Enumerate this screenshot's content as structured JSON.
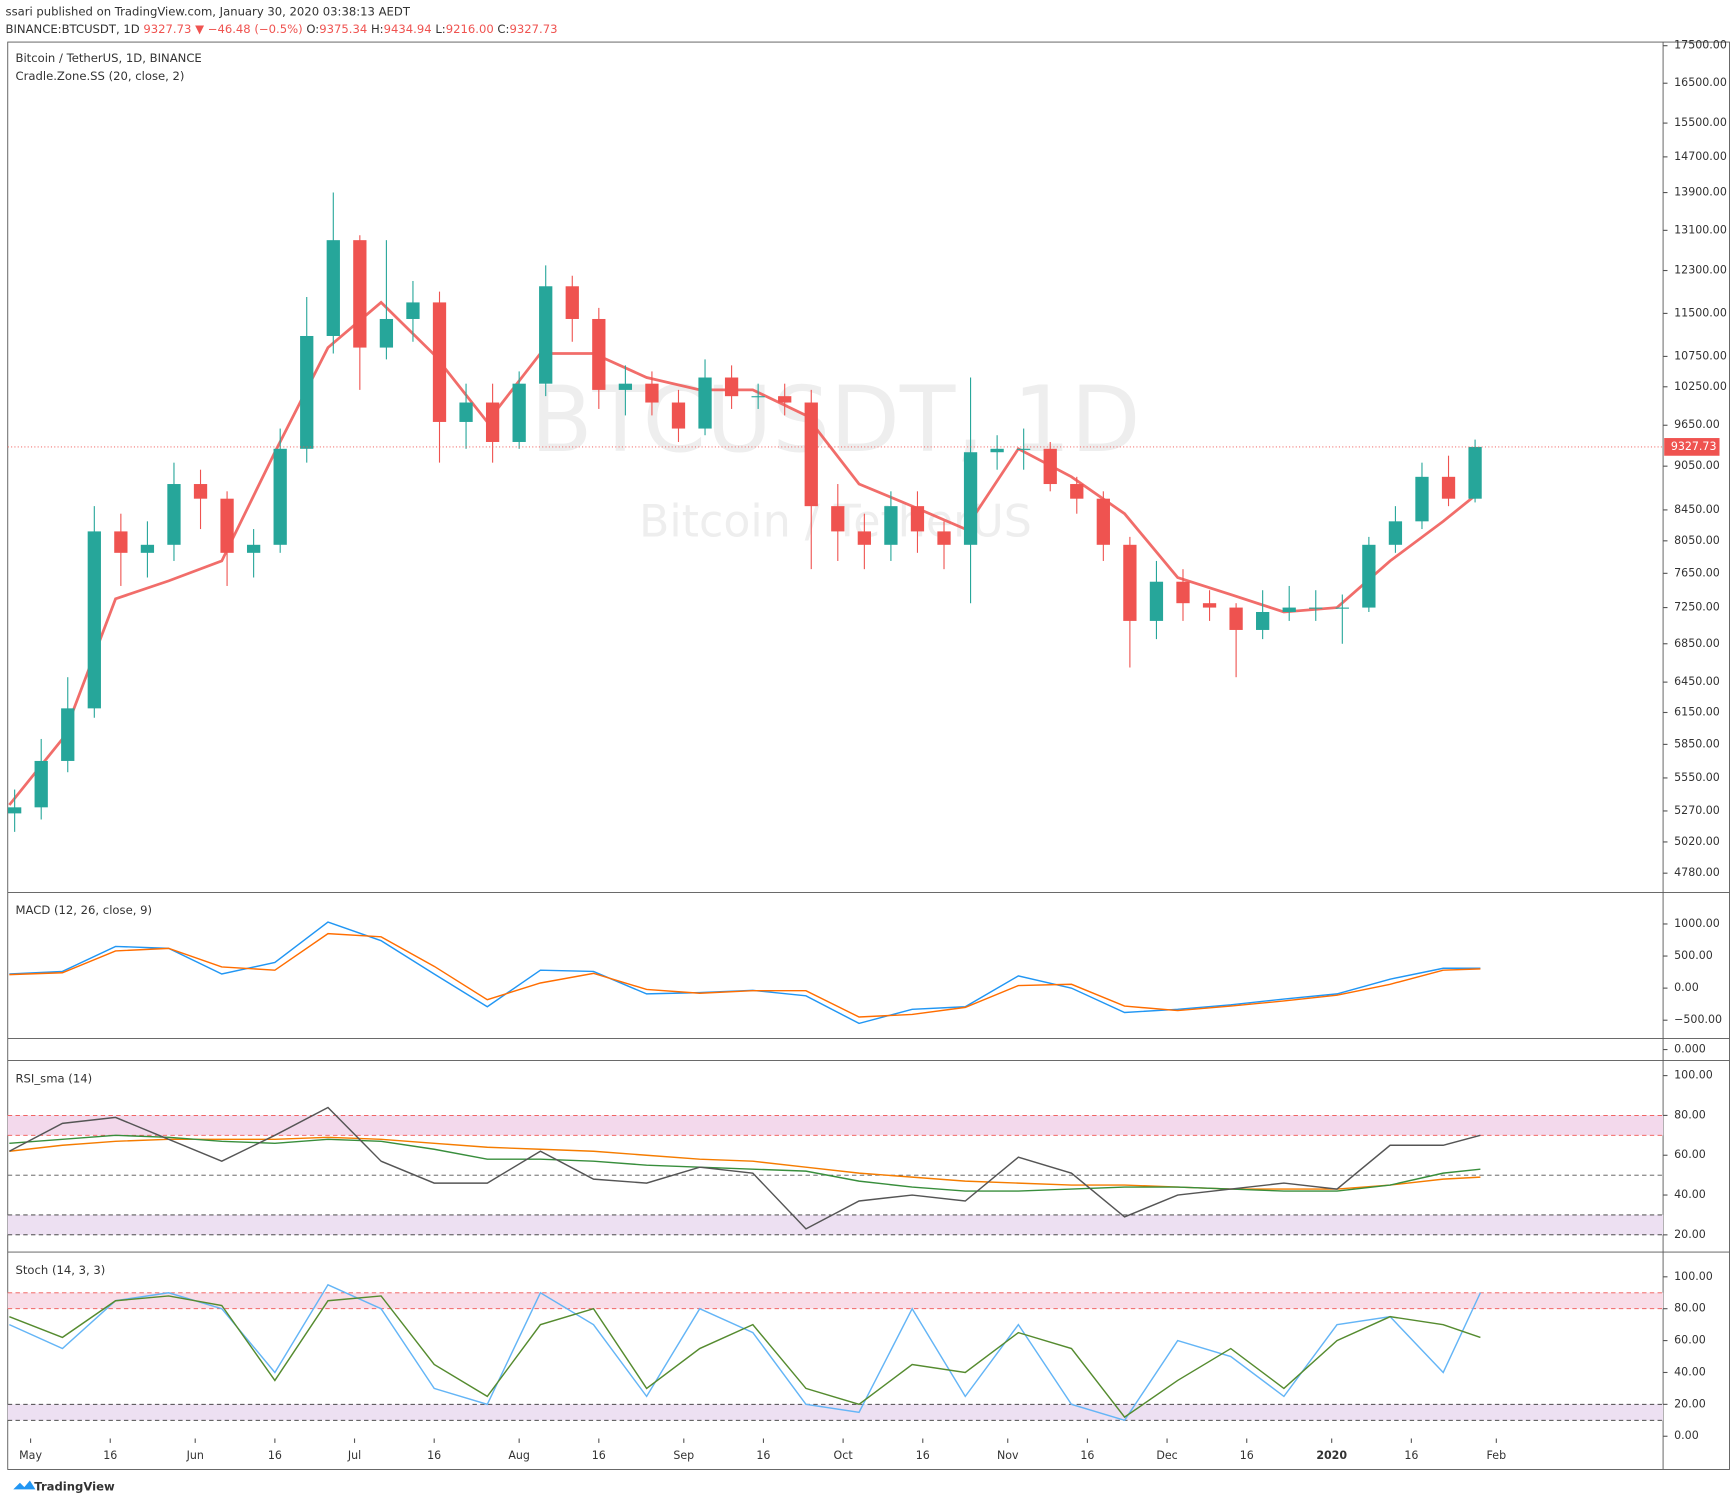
{
  "header": {
    "author_line": "ssari published on TradingView.com, January 30, 2020 03:38:13 AEDT",
    "symbol": "BINANCE:BTCUSDT, 1D",
    "last": "9327.73",
    "change": "▼ −46.48 (−0.5%)",
    "ohlc": [
      {
        "label": "O:",
        "value": "9375.34"
      },
      {
        "label": "H:",
        "value": "9434.94"
      },
      {
        "label": "L:",
        "value": "9216.00"
      },
      {
        "label": "C:",
        "value": "9327.73"
      }
    ]
  },
  "footer": {
    "brand": "TradingView"
  },
  "chart_data": [
    {
      "type": "candlestick",
      "title": "Bitcoin / TetherUS, 1D, BINANCE",
      "subtitle": "Cradle.Zone.SS (20, close, 2)",
      "watermark": "BTCUSDT, 1D",
      "watermark_sub": "Bitcoin / TetherUS",
      "log_scale": true,
      "up_color": "#26a69a",
      "down_color": "#ef5350",
      "xlim": [
        -4.3,
        307.4
      ],
      "xticks": [
        {
          "value": 0,
          "label": "May"
        },
        {
          "value": 15,
          "label": "16"
        },
        {
          "value": 31,
          "label": "Jun"
        },
        {
          "value": 46,
          "label": "16"
        },
        {
          "value": 61,
          "label": "Jul"
        },
        {
          "value": 76,
          "label": "16"
        },
        {
          "value": 92,
          "label": "Aug"
        },
        {
          "value": 107,
          "label": "16"
        },
        {
          "value": 123,
          "label": "Sep"
        },
        {
          "value": 138,
          "label": "16"
        },
        {
          "value": 153,
          "label": "Oct"
        },
        {
          "value": 168,
          "label": "16"
        },
        {
          "value": 184,
          "label": "Nov"
        },
        {
          "value": 199,
          "label": "16"
        },
        {
          "value": 214,
          "label": "Dec"
        },
        {
          "value": 229,
          "label": "16"
        },
        {
          "value": 245,
          "label": "2020"
        },
        {
          "value": 260,
          "label": "16"
        },
        {
          "value": 276,
          "label": "Feb"
        }
      ],
      "ylim": [
        4650,
        17600
      ],
      "yticks": [
        {
          "value": 17500,
          "label": "17500.00"
        },
        {
          "value": 16500,
          "label": "16500.00"
        },
        {
          "value": 15500,
          "label": "15500.00"
        },
        {
          "value": 14700,
          "label": "14700.00"
        },
        {
          "value": 13900,
          "label": "13900.00"
        },
        {
          "value": 13100,
          "label": "13100.00"
        },
        {
          "value": 12300,
          "label": "12300.00"
        },
        {
          "value": 11500,
          "label": "11500.00"
        },
        {
          "value": 10750,
          "label": "10750.00"
        },
        {
          "value": 10250,
          "label": "10250.00"
        },
        {
          "value": 9650,
          "label": "9650.00"
        },
        {
          "value": 9050,
          "label": "9050.00"
        },
        {
          "value": 8450,
          "label": "8450.00"
        },
        {
          "value": 8050,
          "label": "8050.00"
        },
        {
          "value": 7650,
          "label": "7650.00"
        },
        {
          "value": 7250,
          "label": "7250.00"
        },
        {
          "value": 6850,
          "label": "6850.00"
        },
        {
          "value": 6450,
          "label": "6450.00"
        },
        {
          "value": 6150,
          "label": "6150.00"
        },
        {
          "value": 5850,
          "label": "5850.00"
        },
        {
          "value": 5550,
          "label": "5550.00"
        },
        {
          "value": 5270,
          "label": "5270.00"
        },
        {
          "value": 5020,
          "label": "5020.00"
        },
        {
          "value": 4780,
          "label": "4780.00"
        }
      ],
      "x": [
        -3,
        2,
        7,
        12,
        17,
        22,
        27,
        32,
        37,
        42,
        47,
        52,
        57,
        62,
        67,
        72,
        77,
        82,
        87,
        92,
        97,
        102,
        107,
        112,
        117,
        122,
        127,
        132,
        137,
        142,
        147,
        152,
        157,
        162,
        167,
        172,
        177,
        182,
        187,
        192,
        197,
        202,
        207,
        212,
        217,
        222,
        227,
        232,
        237,
        242,
        247,
        252,
        257,
        262,
        267,
        272
      ],
      "open": [
        5250,
        5300,
        5700,
        6190,
        8170,
        7900,
        8000,
        8800,
        8600,
        7900,
        8000,
        9300,
        11100,
        12900,
        10900,
        11400,
        11700,
        9700,
        10000,
        9400,
        10300,
        12000,
        11400,
        10200,
        10300,
        10000,
        9600,
        10400,
        10100,
        10100,
        10000,
        8500,
        8170,
        8000,
        8500,
        8170,
        8000,
        9250,
        9300,
        9300,
        8800,
        8600,
        8000,
        7100,
        7550,
        7300,
        7250,
        7000,
        7200,
        7250,
        7250,
        7250,
        8000,
        8300,
        8900,
        8600
      ],
      "high": [
        5450,
        5900,
        6500,
        8500,
        8400,
        8300,
        9100,
        9000,
        8700,
        8200,
        9600,
        11800,
        13900,
        13000,
        12900,
        12100,
        11900,
        10300,
        10300,
        10500,
        12400,
        12200,
        11600,
        10600,
        10500,
        10200,
        10700,
        10600,
        10300,
        10300,
        10200,
        8800,
        8400,
        8700,
        8700,
        8300,
        10400,
        9500,
        9600,
        9400,
        8900,
        8700,
        8100,
        7800,
        7700,
        7450,
        7300,
        7450,
        7500,
        7450,
        7400,
        8100,
        8500,
        9100,
        9200,
        9435
      ],
      "low": [
        5100,
        5200,
        5600,
        6100,
        7500,
        7600,
        7800,
        8200,
        7500,
        7600,
        7900,
        9100,
        10800,
        10200,
        10700,
        11000,
        9100,
        9300,
        9100,
        9300,
        10100,
        11000,
        9900,
        9800,
        9800,
        9400,
        9500,
        9900,
        9900,
        9800,
        7700,
        7800,
        7700,
        7800,
        7900,
        7700,
        7300,
        9000,
        9000,
        8700,
        8400,
        7800,
        6600,
        6900,
        7100,
        7100,
        6500,
        6900,
        7100,
        7100,
        6850,
        7200,
        7900,
        8200,
        8500,
        8550
      ],
      "close": [
        5300,
        5700,
        6190,
        8170,
        7900,
        8000,
        8800,
        8600,
        7900,
        8000,
        9300,
        11100,
        12900,
        10900,
        11400,
        11700,
        9700,
        10000,
        9400,
        10300,
        12000,
        11400,
        10200,
        10300,
        10000,
        9600,
        10400,
        10100,
        10100,
        10000,
        8500,
        8170,
        8000,
        8500,
        8170,
        8000,
        9250,
        9300,
        9300,
        8800,
        8600,
        8000,
        7100,
        7550,
        7300,
        7250,
        7000,
        7200,
        7250,
        7250,
        7250,
        8000,
        8300,
        8900,
        8600,
        9327.73
      ],
      "zone": {
        "color": "#ef5350",
        "x": [
          -4,
          6,
          16,
          26,
          36,
          46,
          56,
          66,
          76,
          86,
          96,
          106,
          116,
          126,
          136,
          146,
          156,
          166,
          176,
          186,
          196,
          206,
          216,
          226,
          236,
          246,
          256,
          266,
          273
        ],
        "values": [
          5320,
          5900,
          7350,
          7560,
          7800,
          9250,
          10900,
          11700,
          10780,
          9700,
          10800,
          10800,
          10400,
          10200,
          10200,
          9800,
          8800,
          8500,
          8200,
          9300,
          8900,
          8400,
          7600,
          7400,
          7200,
          7250,
          7800,
          8300,
          8700
        ]
      }
    },
    {
      "type": "line",
      "title": "MACD (12, 26, close, 9)",
      "xlim": [
        -4.3,
        307.4
      ],
      "ylim": [
        -759,
        1466
      ],
      "yticks": [
        {
          "value": 1000,
          "label": "1000.00"
        },
        {
          "value": 500,
          "label": "500.00"
        },
        {
          "value": 0,
          "label": "0.00"
        },
        {
          "value": -500,
          "label": "−500.00"
        }
      ],
      "x": [
        -4,
        6,
        16,
        26,
        36,
        46,
        56,
        66,
        76,
        86,
        96,
        106,
        116,
        126,
        136,
        146,
        156,
        166,
        176,
        186,
        196,
        206,
        216,
        226,
        236,
        246,
        256,
        266,
        273
      ],
      "series": [
        {
          "color": "#2196f3",
          "values": [
            220,
            260,
            650,
            620,
            220,
            400,
            1030,
            740,
            220,
            -290,
            280,
            260,
            -90,
            -70,
            -35,
            -120,
            -550,
            -330,
            -290,
            190,
            0,
            -380,
            -330,
            -260,
            -170,
            -90,
            140,
            310,
            310
          ]
        },
        {
          "color": "#ff6d00",
          "values": [
            210,
            240,
            580,
            620,
            330,
            280,
            850,
            800,
            340,
            -180,
            80,
            230,
            -20,
            -80,
            -40,
            -40,
            -450,
            -410,
            -300,
            40,
            60,
            -280,
            -350,
            -280,
            -200,
            -110,
            60,
            280,
            300
          ]
        }
      ]
    },
    {
      "type": "line",
      "xlim": [
        -4.3,
        307.4
      ],
      "ylim": [
        -1,
        1
      ],
      "yticks": [
        {
          "value": 0,
          "label": "0.000"
        }
      ],
      "x": [],
      "series": []
    },
    {
      "type": "line",
      "title": "RSI_sma (14)",
      "xlim": [
        -4.3,
        307.4
      ],
      "ylim": [
        12.2,
        106.7
      ],
      "yticks": [
        {
          "value": 100,
          "label": "100.00"
        },
        {
          "value": 80,
          "label": "80.00"
        },
        {
          "value": 60,
          "label": "60.00"
        },
        {
          "value": 40,
          "label": "40.00"
        },
        {
          "value": 20,
          "label": "20.00"
        }
      ],
      "bands": [
        {
          "range": [
            70,
            80
          ],
          "color": "#f3d9ec"
        },
        {
          "range": [
            20,
            30
          ],
          "color": "#ede0f2"
        }
      ],
      "levels": [
        {
          "value": 80,
          "color": "#ef5350"
        },
        {
          "value": 70,
          "color": "#ef5350"
        },
        {
          "value": 50,
          "color": "#555"
        },
        {
          "value": 30,
          "color": "#333"
        },
        {
          "value": 20,
          "color": "#333"
        }
      ],
      "x": [
        -4,
        6,
        16,
        26,
        36,
        46,
        56,
        66,
        76,
        86,
        96,
        106,
        116,
        126,
        136,
        146,
        156,
        166,
        176,
        186,
        196,
        206,
        216,
        226,
        236,
        246,
        256,
        266,
        273
      ],
      "series": [
        {
          "color": "#f57c00",
          "values": [
            62,
            65,
            67,
            68,
            68,
            68,
            69,
            68,
            66,
            64,
            63,
            62,
            60,
            58,
            57,
            54,
            51,
            49,
            47,
            46,
            45,
            45,
            44,
            43,
            43,
            43,
            45,
            48,
            49
          ]
        },
        {
          "color": "#388e3c",
          "values": [
            66,
            68,
            70,
            69,
            67,
            66,
            68,
            67,
            63,
            58,
            58,
            57,
            55,
            54,
            53,
            52,
            47,
            44,
            42,
            42,
            43,
            44,
            44,
            43,
            42,
            42,
            45,
            51,
            53
          ]
        },
        {
          "color": "#555555",
          "values": [
            62,
            76,
            79,
            68,
            57,
            70,
            84,
            57,
            46,
            46,
            62,
            48,
            46,
            54,
            51,
            23,
            37,
            40,
            37,
            59,
            51,
            29,
            40,
            43,
            46,
            43,
            65,
            65,
            70
          ]
        }
      ]
    },
    {
      "type": "line",
      "title": "Stoch (14, 3, 3)",
      "xlim": [
        -4.3,
        307.4
      ],
      "ylim": [
        -1.4,
        114.5
      ],
      "yticks": [
        {
          "value": 100,
          "label": "100.00"
        },
        {
          "value": 80,
          "label": "80.00"
        },
        {
          "value": 60,
          "label": "60.00"
        },
        {
          "value": 40,
          "label": "40.00"
        },
        {
          "value": 20,
          "label": "20.00"
        },
        {
          "value": 0,
          "label": "0.00"
        }
      ],
      "bands": [
        {
          "range": [
            80,
            90
          ],
          "color": "#f9dde8"
        },
        {
          "range": [
            10,
            20
          ],
          "color": "#ede0f2"
        }
      ],
      "levels": [
        {
          "value": 90,
          "color": "#ef5350"
        },
        {
          "value": 80,
          "color": "#ef5350"
        },
        {
          "value": 20,
          "color": "#333"
        },
        {
          "value": 10,
          "color": "#333"
        }
      ],
      "x": [
        -4,
        6,
        16,
        26,
        36,
        46,
        56,
        66,
        76,
        86,
        96,
        106,
        116,
        126,
        136,
        146,
        156,
        166,
        176,
        186,
        196,
        206,
        216,
        226,
        236,
        246,
        256,
        266,
        273
      ],
      "series": [
        {
          "color": "#64b5f6",
          "values": [
            70,
            55,
            85,
            90,
            80,
            40,
            95,
            80,
            30,
            20,
            90,
            70,
            25,
            80,
            65,
            20,
            15,
            80,
            25,
            70,
            20,
            10,
            60,
            50,
            25,
            70,
            75,
            40,
            90
          ]
        },
        {
          "color": "#558b2f",
          "values": [
            75,
            62,
            85,
            88,
            82,
            35,
            85,
            88,
            45,
            25,
            70,
            80,
            30,
            55,
            70,
            30,
            20,
            45,
            40,
            65,
            55,
            12,
            35,
            55,
            30,
            60,
            75,
            70,
            62
          ]
        }
      ]
    }
  ]
}
